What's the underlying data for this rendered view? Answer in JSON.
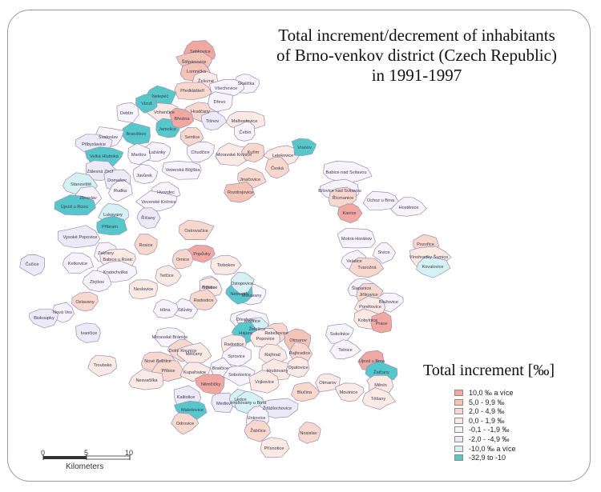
{
  "title": {
    "line1": "Total increment/decrement of inhabitants",
    "line2": "of Brno-venkov district (Czech Republic)",
    "line3": "in  1991-1997"
  },
  "legend": {
    "title": "Total increment [‰]",
    "items": [
      {
        "label": "10,0 ‰ a více",
        "color": "#f0a8a0"
      },
      {
        "label": "5,0 - 9,9 ‰",
        "color": "#f4c4b6"
      },
      {
        "label": "2,0 - 4,9 ‰",
        "color": "#f8d8cc"
      },
      {
        "label": "0,0 - 1,9 ‰",
        "color": "#fbe9e4"
      },
      {
        "label": "-0,1 - -1,9 ‰",
        "color": "#f7f3fa"
      },
      {
        "label": "-2,0 - -4,9 ‰",
        "color": "#eceaf6"
      },
      {
        "label": "-10,0 ‰ a více",
        "color": "#d6f1f3"
      },
      {
        "label": "-32,9 to -10",
        "color": "#56c8cc"
      }
    ]
  },
  "scale_bar": {
    "ticks": [
      "0",
      "5",
      "10"
    ],
    "unit_label": "Kilometers"
  },
  "municipalities": [
    {
      "name": "Sebkovice",
      "cls": 1
    },
    {
      "name": "Štěpánovice",
      "cls": 2
    },
    {
      "name": "Lomnička",
      "cls": 2
    },
    {
      "name": "Železné",
      "cls": 4
    },
    {
      "name": "Skalička",
      "cls": 5
    },
    {
      "name": "Předklášteří",
      "cls": 3
    },
    {
      "name": "Všechovice",
      "cls": 5
    },
    {
      "name": "Nelepeč",
      "cls": 8
    },
    {
      "name": "Vohančice",
      "cls": 4
    },
    {
      "name": "Hradčany",
      "cls": 3
    },
    {
      "name": "Dřevo",
      "cls": 5
    },
    {
      "name": "Tišnov",
      "cls": 6
    },
    {
      "name": "Malhostovice",
      "cls": 4
    },
    {
      "name": "Vizuš",
      "cls": 8
    },
    {
      "name": "Deblín",
      "cls": 5
    },
    {
      "name": "Braníškov",
      "cls": 8
    },
    {
      "name": "Jamolice",
      "cls": 8
    },
    {
      "name": "Březina",
      "cls": 1
    },
    {
      "name": "Sentice",
      "cls": 3
    },
    {
      "name": "Čebín",
      "cls": 5
    },
    {
      "name": "Svatoslav",
      "cls": 5
    },
    {
      "name": "Přibyslavice",
      "cls": 6
    },
    {
      "name": "Lažánky",
      "cls": 5
    },
    {
      "name": "Chudčice",
      "cls": 5
    },
    {
      "name": "Moravské Knínice",
      "cls": 4
    },
    {
      "name": "Kuřim",
      "cls": 3
    },
    {
      "name": "Lelekovice",
      "cls": 4
    },
    {
      "name": "Vranov",
      "cls": 8
    },
    {
      "name": "Velká Hluboká",
      "cls": 8
    },
    {
      "name": "Maršov",
      "cls": 5
    },
    {
      "name": "Česká",
      "cls": 3
    },
    {
      "name": "Zálesná Zhoř",
      "cls": 6
    },
    {
      "name": "Javůrek",
      "cls": 5
    },
    {
      "name": "Veverská Bítýška",
      "cls": 5
    },
    {
      "name": "Jinačovice",
      "cls": 3
    },
    {
      "name": "Babice nad Svitavou",
      "cls": 5
    },
    {
      "name": "Domašov",
      "cls": 6
    },
    {
      "name": "Stanoviště",
      "cls": 7
    },
    {
      "name": "Rudka",
      "cls": 5
    },
    {
      "name": "Rozdrojovice",
      "cls": 2
    },
    {
      "name": "Bílovice nad Svitavou",
      "cls": 5
    },
    {
      "name": "Řícmanice",
      "cls": 3
    },
    {
      "name": "Zbraslav",
      "cls": 5
    },
    {
      "name": "Hvozdec",
      "cls": 5
    },
    {
      "name": "Ochoz u Brna",
      "cls": 5
    },
    {
      "name": "Újezd u Rosic",
      "cls": 8
    },
    {
      "name": "Lukovany",
      "cls": 7
    },
    {
      "name": "Veverské Knínice",
      "cls": 5
    },
    {
      "name": "Kanice",
      "cls": 1
    },
    {
      "name": "Hostěnice",
      "cls": 5
    },
    {
      "name": "Říčany",
      "cls": 6
    },
    {
      "name": "Příbram",
      "cls": 8
    },
    {
      "name": "Vysoké Popovice",
      "cls": 6
    },
    {
      "name": "Ostrovačice",
      "cls": 3
    },
    {
      "name": "Mokrá-Horákov",
      "cls": 5
    },
    {
      "name": "Pozořice",
      "cls": 3
    },
    {
      "name": "Zakřany",
      "cls": 5
    },
    {
      "name": "Rosice",
      "cls": 3
    },
    {
      "name": "Popůvky",
      "cls": 1
    },
    {
      "name": "Sivice",
      "cls": 5
    },
    {
      "name": "Vínohradky Šumice",
      "cls": 4
    },
    {
      "name": "Ketkovice",
      "cls": 5
    },
    {
      "name": "Babice u Rosic",
      "cls": 4
    },
    {
      "name": "Omice",
      "cls": 3
    },
    {
      "name": "Tiobokov",
      "cls": 4
    },
    {
      "name": "Prštice",
      "cls": 5
    },
    {
      "name": "Velatice",
      "cls": 5
    },
    {
      "name": "Kovalovice",
      "cls": 7
    },
    {
      "name": "Kratochvilka",
      "cls": 5
    },
    {
      "name": "Tvarožná",
      "cls": 3
    },
    {
      "name": "Zbýšov",
      "cls": 5
    },
    {
      "name": "Tetčice",
      "cls": 4
    },
    {
      "name": "Ořechov",
      "cls": 5
    },
    {
      "name": "Silůvky",
      "cls": 5
    },
    {
      "name": "Střelice",
      "cls": 4
    },
    {
      "name": "Radostice",
      "cls": 3
    },
    {
      "name": "Šlapanice",
      "cls": 5
    },
    {
      "name": "Neslovice",
      "cls": 4
    },
    {
      "name": "Oslavany",
      "cls": 3
    },
    {
      "name": "Čučice",
      "cls": 6
    },
    {
      "name": "Jiříkovice",
      "cls": 3
    },
    {
      "name": "Blažovice",
      "cls": 5
    },
    {
      "name": "Ponětovice",
      "cls": 4
    },
    {
      "name": "Hlína",
      "cls": 5
    },
    {
      "name": "Nová Ves",
      "cls": 5
    },
    {
      "name": "Biskoupky",
      "cls": 6
    },
    {
      "name": "Ivančice",
      "cls": 6
    },
    {
      "name": "Moravské Bránice",
      "cls": 5
    },
    {
      "name": "Kobylnice",
      "cls": 4
    },
    {
      "name": "Prace",
      "cls": 1
    },
    {
      "name": "Moravany",
      "cls": 5
    },
    {
      "name": "Nebovidy",
      "cls": 8
    },
    {
      "name": "Ostopovice",
      "cls": 7
    },
    {
      "name": "Troubsko",
      "cls": 4
    },
    {
      "name": "Modřice",
      "cls": 5
    },
    {
      "name": "Želešice",
      "cls": 7
    },
    {
      "name": "Hajany",
      "cls": 8
    },
    {
      "name": "Rebešovice",
      "cls": 3
    },
    {
      "name": "Otmarov",
      "cls": 2
    },
    {
      "name": "Sokolnice",
      "cls": 5
    },
    {
      "name": "Popovice",
      "cls": 4
    },
    {
      "name": "Radostice",
      "cls": 4
    },
    {
      "name": "Telnice",
      "cls": 5
    },
    {
      "name": "Újezd u Brna",
      "cls": 1
    },
    {
      "name": "Dolní Kounice",
      "cls": 3
    },
    {
      "name": "Nové Bránice",
      "cls": 3
    },
    {
      "name": "Mělčany",
      "cls": 4
    },
    {
      "name": "Syrovice",
      "cls": 5
    },
    {
      "name": "Rajhrad",
      "cls": 4
    },
    {
      "name": "Rajhradice",
      "cls": 3
    },
    {
      "name": "Žatčany",
      "cls": 8
    },
    {
      "name": "Přibice",
      "cls": 3
    },
    {
      "name": "Bratčice",
      "cls": 5
    },
    {
      "name": "Sobotovice",
      "cls": 5
    },
    {
      "name": "Hrušovany",
      "cls": 4
    },
    {
      "name": "Opatovice",
      "cls": 4
    },
    {
      "name": "Otmarov",
      "cls": 4
    },
    {
      "name": "Měnín",
      "cls": 4
    },
    {
      "name": "Nesvačilka",
      "cls": 4
    },
    {
      "name": "Kupařovice",
      "cls": 4
    },
    {
      "name": "Němčičky",
      "cls": 1
    },
    {
      "name": "Vojkovice",
      "cls": 4
    },
    {
      "name": "Blučina",
      "cls": 3
    },
    {
      "name": "Moutnice",
      "cls": 4
    },
    {
      "name": "Těšany",
      "cls": 4
    },
    {
      "name": "Kalitolice",
      "cls": 6
    },
    {
      "name": "Mediov",
      "cls": 6
    },
    {
      "name": "Ledce",
      "cls": 7
    },
    {
      "name": "Hrušovany u Brna",
      "cls": 7
    },
    {
      "name": "Žďážlochovice",
      "cls": 6
    },
    {
      "name": "Malešovice",
      "cls": 8
    },
    {
      "name": "Unkovice",
      "cls": 5
    },
    {
      "name": "Odrovice",
      "cls": 3
    },
    {
      "name": "Žabčice",
      "cls": 3
    },
    {
      "name": "Nosislav",
      "cls": 3
    },
    {
      "name": "Přísnotice",
      "cls": 4
    }
  ]
}
